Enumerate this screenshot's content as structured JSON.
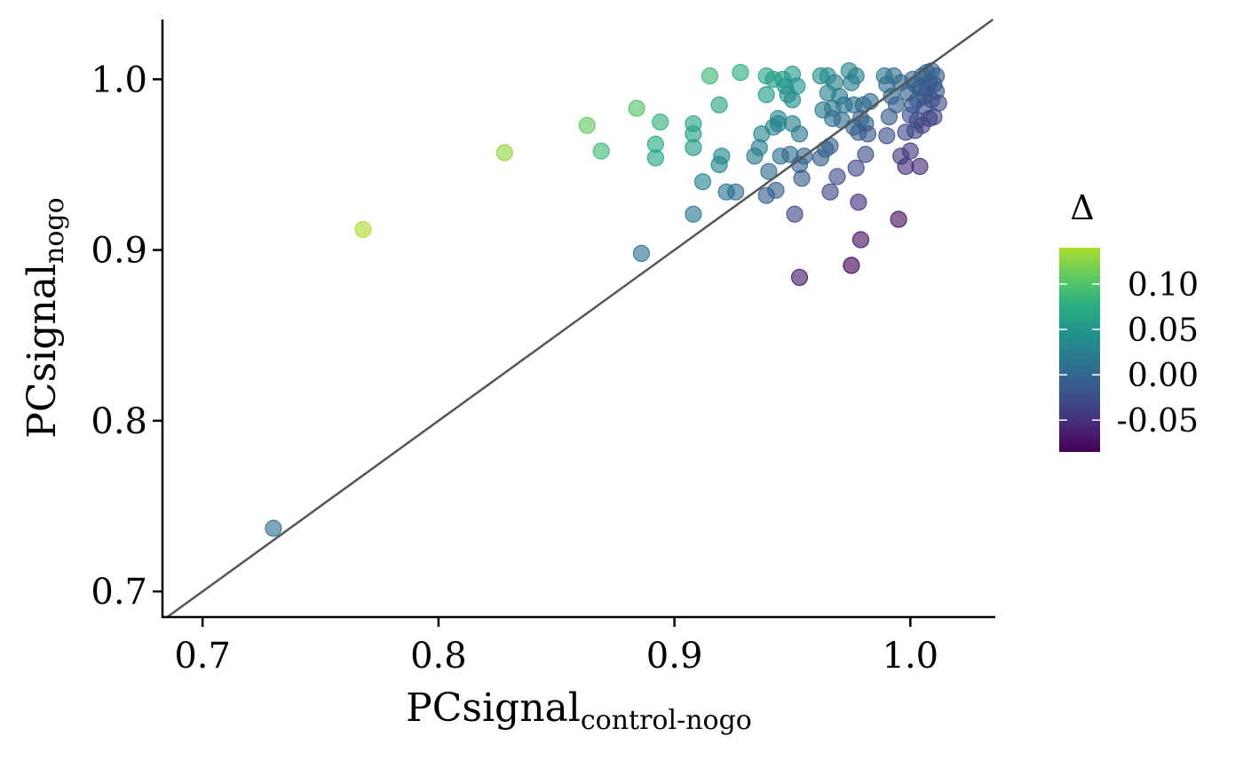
{
  "chart_data": {
    "type": "scatter",
    "xlabel": {
      "base": "PCsignal",
      "sub": "control-nogo"
    },
    "ylabel": {
      "base": "PCsignal",
      "sub": "nogo"
    },
    "xlim": [
      0.683,
      1.036
    ],
    "ylim": [
      0.685,
      1.035
    ],
    "x_ticks": [
      0.7,
      0.8,
      0.9,
      1.0
    ],
    "x_tick_labels": [
      "0.7",
      "0.8",
      "0.9",
      "1.0"
    ],
    "y_ticks": [
      0.7,
      0.8,
      0.9,
      1.0
    ],
    "y_tick_labels": [
      "0.7",
      "0.8",
      "0.9",
      "1.0"
    ],
    "reference_line": "identity y = x",
    "grid": false,
    "legend": {
      "title": "Δ",
      "placement": "right",
      "range": [
        -0.085,
        0.14
      ],
      "ticks": [
        0.1,
        0.05,
        0.0,
        -0.05
      ],
      "tick_labels": [
        "0.10",
        "0.05",
        "0.00",
        "-0.05"
      ]
    },
    "colormap": [
      "#440154",
      "#472d7b",
      "#3b528b",
      "#2c728e",
      "#21918c",
      "#28ae80",
      "#5ec962",
      "#addc30"
    ],
    "points": [
      [
        0.73,
        0.737
      ],
      [
        0.768,
        0.912
      ],
      [
        0.828,
        0.957
      ],
      [
        0.863,
        0.973
      ],
      [
        0.869,
        0.958
      ],
      [
        0.884,
        0.983
      ],
      [
        0.886,
        0.898
      ],
      [
        0.892,
        0.962
      ],
      [
        0.892,
        0.954
      ],
      [
        0.894,
        0.975
      ],
      [
        0.908,
        0.974
      ],
      [
        0.908,
        0.968
      ],
      [
        0.908,
        0.96
      ],
      [
        0.908,
        0.921
      ],
      [
        0.912,
        0.94
      ],
      [
        0.915,
        1.002
      ],
      [
        0.919,
        0.985
      ],
      [
        0.919,
        0.95
      ],
      [
        0.92,
        0.955
      ],
      [
        0.922,
        0.934
      ],
      [
        0.926,
        0.934
      ],
      [
        0.928,
        1.004
      ],
      [
        0.934,
        0.955
      ],
      [
        0.936,
        0.96
      ],
      [
        0.937,
        0.968
      ],
      [
        0.939,
        1.002
      ],
      [
        0.939,
        0.991
      ],
      [
        0.939,
        0.932
      ],
      [
        0.94,
        0.946
      ],
      [
        0.942,
        1.0
      ],
      [
        0.942,
        0.972
      ],
      [
        0.943,
        0.935
      ],
      [
        0.944,
        0.977
      ],
      [
        0.944,
        0.974
      ],
      [
        0.945,
        0.955
      ],
      [
        0.946,
        1.0
      ],
      [
        0.947,
        0.996
      ],
      [
        0.948,
        0.991
      ],
      [
        0.949,
        0.956
      ],
      [
        0.95,
        1.003
      ],
      [
        0.95,
        0.988
      ],
      [
        0.95,
        0.974
      ],
      [
        0.951,
        0.921
      ],
      [
        0.952,
        0.996
      ],
      [
        0.953,
        0.968
      ],
      [
        0.953,
        0.95
      ],
      [
        0.953,
        0.884
      ],
      [
        0.954,
        0.942
      ],
      [
        0.955,
        0.955
      ],
      [
        0.962,
        1.002
      ],
      [
        0.962,
        0.954
      ],
      [
        0.963,
        0.982
      ],
      [
        0.964,
        0.959
      ],
      [
        0.965,
        1.002
      ],
      [
        0.965,
        0.992
      ],
      [
        0.966,
        0.961
      ],
      [
        0.966,
        0.934
      ],
      [
        0.967,
        0.983
      ],
      [
        0.967,
        0.977
      ],
      [
        0.968,
        0.998
      ],
      [
        0.969,
        0.943
      ],
      [
        0.97,
        0.99
      ],
      [
        0.971,
        0.976
      ],
      [
        0.972,
        0.985
      ],
      [
        0.974,
        1.005
      ],
      [
        0.975,
        0.998
      ],
      [
        0.975,
        0.891
      ],
      [
        0.976,
        0.985
      ],
      [
        0.976,
        0.972
      ],
      [
        0.977,
        1.002
      ],
      [
        0.977,
        0.948
      ],
      [
        0.978,
        0.928
      ],
      [
        0.978,
        0.969
      ],
      [
        0.979,
        0.977
      ],
      [
        0.979,
        0.906
      ],
      [
        0.98,
        0.985
      ],
      [
        0.981,
        0.974
      ],
      [
        0.981,
        0.956
      ],
      [
        0.982,
        0.968
      ],
      [
        0.983,
        0.987
      ],
      [
        0.989,
        1.002
      ],
      [
        0.99,
        0.997
      ],
      [
        0.99,
        0.967
      ],
      [
        0.991,
        0.978
      ],
      [
        0.992,
        0.99
      ],
      [
        0.993,
        1.002
      ],
      [
        0.994,
        0.985
      ],
      [
        0.995,
        0.918
      ],
      [
        0.996,
        0.955
      ],
      [
        0.996,
        0.998
      ],
      [
        0.998,
        0.969
      ],
      [
        0.998,
        0.949
      ],
      [
        0.999,
        0.992
      ],
      [
        1.0,
        0.979
      ],
      [
        1.0,
        0.958
      ],
      [
        1.001,
        1.0
      ],
      [
        1.001,
        0.985
      ],
      [
        1.002,
        0.997
      ],
      [
        1.002,
        0.97
      ],
      [
        1.003,
        0.988
      ],
      [
        1.003,
        0.976
      ],
      [
        1.004,
        0.995
      ],
      [
        1.004,
        0.949
      ],
      [
        1.005,
        1.002
      ],
      [
        1.005,
        0.973
      ],
      [
        1.006,
        0.99
      ],
      [
        1.006,
        0.984
      ],
      [
        1.007,
        1.004
      ],
      [
        1.007,
        0.994
      ],
      [
        1.008,
        0.998
      ],
      [
        1.008,
        0.977
      ],
      [
        1.009,
        1.005
      ],
      [
        1.009,
        0.988
      ],
      [
        1.01,
        0.997
      ],
      [
        1.01,
        0.978
      ],
      [
        1.011,
        1.002
      ],
      [
        1.011,
        0.993
      ],
      [
        1.012,
        0.986
      ]
    ]
  }
}
